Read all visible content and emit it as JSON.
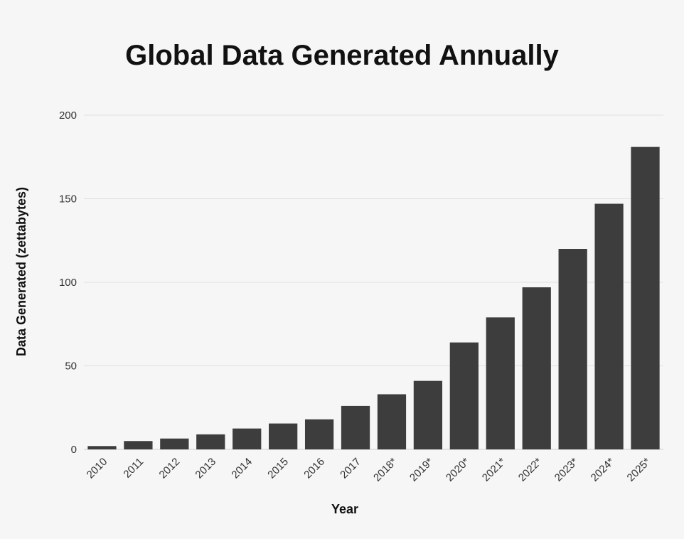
{
  "chart_data": {
    "type": "bar",
    "title": "Global Data Generated Annually",
    "xlabel": "Year",
    "ylabel": "Data Generated (zettabytes)",
    "categories": [
      "2010",
      "2011",
      "2012",
      "2013",
      "2014",
      "2015",
      "2016",
      "2017",
      "2018*",
      "2019*",
      "2020*",
      "2021*",
      "2022*",
      "2023*",
      "2024*",
      "2025*"
    ],
    "values": [
      2,
      5,
      6.5,
      9,
      12.5,
      15.5,
      18,
      26,
      33,
      41,
      64,
      79,
      97,
      120,
      147,
      181
    ],
    "ylim": [
      0,
      200
    ],
    "yticks": [
      0,
      50,
      100,
      150,
      200
    ],
    "grid": true,
    "colors": {
      "bar": "#3d3d3d",
      "background": "#f6f6f6"
    }
  }
}
